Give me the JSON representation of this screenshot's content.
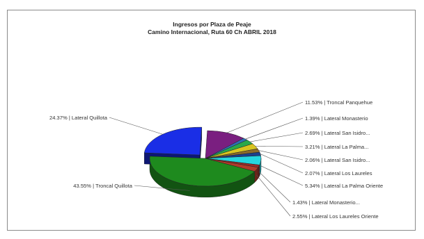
{
  "chart_data": {
    "type": "pie",
    "title": "Ingresos por Plaza de Peaje",
    "subtitle": "Camino Internacional, Ruta 60 Ch ABRIL 2018",
    "slices": [
      {
        "label": "11.53% | Troncal Panquehue",
        "value": 11.53,
        "color": "#7a1f80"
      },
      {
        "label": "1.39% | Lateral Monasterio",
        "value": 1.39,
        "color": "#2e6fb5"
      },
      {
        "label": "2.69% | Lateral San Isidro...",
        "value": 2.69,
        "color": "#2aa84a"
      },
      {
        "label": "3.21% | Lateral La Palma...",
        "value": 3.21,
        "color": "#d8c420"
      },
      {
        "label": "2.06% | Lateral San Isidro...",
        "value": 2.06,
        "color": "#8a6a2a"
      },
      {
        "label": "2.07% | Lateral Los Laureles",
        "value": 2.07,
        "color": "#1c3f8c"
      },
      {
        "label": "5.34% | Lateral La Palma Oriente",
        "value": 5.34,
        "color": "#25d6e0"
      },
      {
        "label": "1.43% | Lateral Monasterio...",
        "value": 1.43,
        "color": "#9a2a2a"
      },
      {
        "label": "2.55% | Lateral Los Laureles Oriente",
        "value": 2.55,
        "color": "#b23a2a"
      },
      {
        "label": "43.55% | Troncal Quillota",
        "value": 43.55,
        "color": "#1e8a1e"
      },
      {
        "label": "24.37% | Lateral Quillota",
        "value": 24.37,
        "color": "#1a2ee6"
      }
    ],
    "legend": "none"
  }
}
